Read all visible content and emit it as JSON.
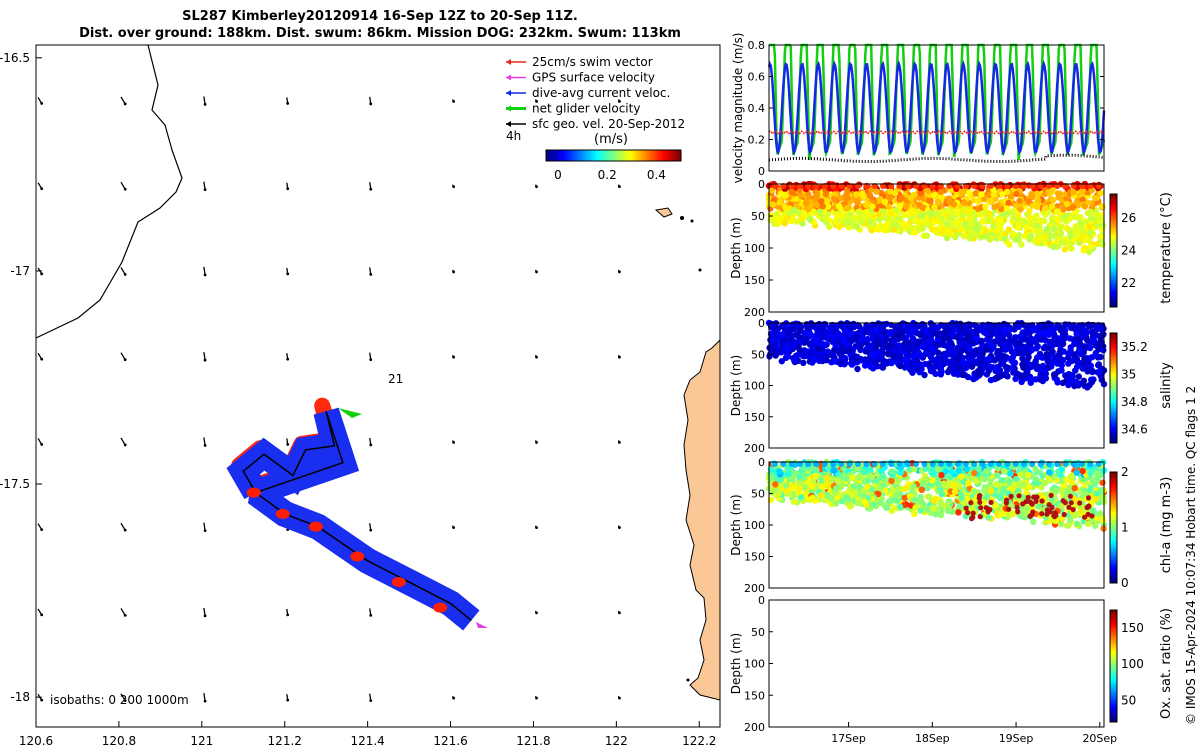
{
  "title_line1": "SL287 Kimberley20120914 16-Sep 12Z to 20-Sep 11Z.",
  "title_line2": "Dist. over ground: 188km. Dist. swum: 86km. Mission DOG: 232km. Swum: 113km",
  "credit": "© IMOS 15-Apr-2024 10:07:34 Hobart time. QC flags 1  2",
  "colors": {
    "land": "#f9c896",
    "swim": "#e8281e",
    "gps": "#e040e0",
    "dive_avg": "#1428e6",
    "net": "#10d010",
    "sfc_geo": "#000000",
    "track_red": "#ff1e00",
    "track_blue": "#1a2ef0"
  },
  "chart_data": [
    {
      "type": "scatter",
      "name": "map",
      "x_ticks": [
        "120.6",
        "120.8",
        "121",
        "121.2",
        "121.4",
        "121.6",
        "121.8",
        "122",
        "122.2"
      ],
      "y_ticks": [
        "-16.5",
        "-17",
        "-17.5",
        "-18"
      ],
      "xlim": [
        120.6,
        122.25
      ],
      "ylim": [
        -18.07,
        -16.47
      ],
      "legend": [
        {
          "label": "25cm/s swim vector",
          "color": "swim"
        },
        {
          "label": "GPS surface velocity",
          "color": "gps"
        },
        {
          "label": "dive-avg current veloc.",
          "color": "dive_avg"
        },
        {
          "label": "net glider velocity",
          "color": "net"
        },
        {
          "label": "sfc geo. vel. 20-Sep-2012",
          "color": "sfc_geo"
        }
      ],
      "legend_position": "top-right",
      "time_label": "4h",
      "colorbar_title": "(m/s)",
      "colorbar_ticks": [
        "0",
        "0.2",
        "0.4"
      ],
      "annotation": "21",
      "isobaths_label": "isobaths: 0  200  1000m",
      "track": [
        [
          121.13,
          -17.52
        ],
        [
          121.1,
          -17.47
        ],
        [
          121.15,
          -17.43
        ],
        [
          121.22,
          -17.48
        ],
        [
          121.25,
          -17.42
        ],
        [
          121.32,
          -17.41
        ],
        [
          121.3,
          -17.33
        ],
        [
          121.34,
          -17.45
        ],
        [
          121.13,
          -17.52
        ],
        [
          121.2,
          -17.57
        ],
        [
          121.28,
          -17.6
        ],
        [
          121.4,
          -17.68
        ],
        [
          121.5,
          -17.73
        ],
        [
          121.6,
          -17.78
        ],
        [
          121.65,
          -17.82
        ]
      ]
    },
    {
      "type": "line",
      "name": "velocity",
      "ylabel": "velocity magnitude (m/s)",
      "y_ticks": [
        "0",
        "0.2",
        "0.4",
        "0.6",
        "0.8"
      ],
      "ylim": [
        0,
        0.8
      ],
      "x_ticks": [
        "17Sep",
        "18Sep",
        "19Sep",
        "20Sep"
      ],
      "xlim": [
        0,
        4
      ]
    },
    {
      "type": "heatmap",
      "name": "temperature",
      "ylabel": "Depth (m)",
      "y_ticks": [
        "0",
        "50",
        "100",
        "150",
        "200"
      ],
      "colorbar_label": "temperature (°C)",
      "colorbar_ticks": [
        "22",
        "24",
        "26"
      ],
      "clim": [
        20.5,
        27.5
      ]
    },
    {
      "type": "heatmap",
      "name": "salinity",
      "ylabel": "Depth (m)",
      "y_ticks": [
        "0",
        "50",
        "100",
        "150",
        "200"
      ],
      "colorbar_label": "salinity",
      "colorbar_ticks": [
        "34.6",
        "34.8",
        "35",
        "35.2"
      ],
      "clim": [
        34.5,
        35.3
      ]
    },
    {
      "type": "heatmap",
      "name": "chl-a",
      "ylabel": "Depth (m)",
      "y_ticks": [
        "0",
        "50",
        "100",
        "150",
        "200"
      ],
      "colorbar_label": "chl-a (mg m-3)",
      "colorbar_ticks": [
        "0",
        "1",
        "2"
      ],
      "clim": [
        0,
        2
      ]
    },
    {
      "type": "heatmap",
      "name": "oxygen",
      "ylabel": "Depth (m)",
      "y_ticks": [
        "0",
        "50",
        "100",
        "150",
        "200"
      ],
      "colorbar_label": "Ox. sat. ratio (%)",
      "colorbar_ticks": [
        "50",
        "100",
        "150"
      ],
      "clim": [
        20,
        175
      ],
      "x_ticks": [
        "17Sep",
        "18Sep",
        "19Sep",
        "20Sep"
      ]
    }
  ]
}
